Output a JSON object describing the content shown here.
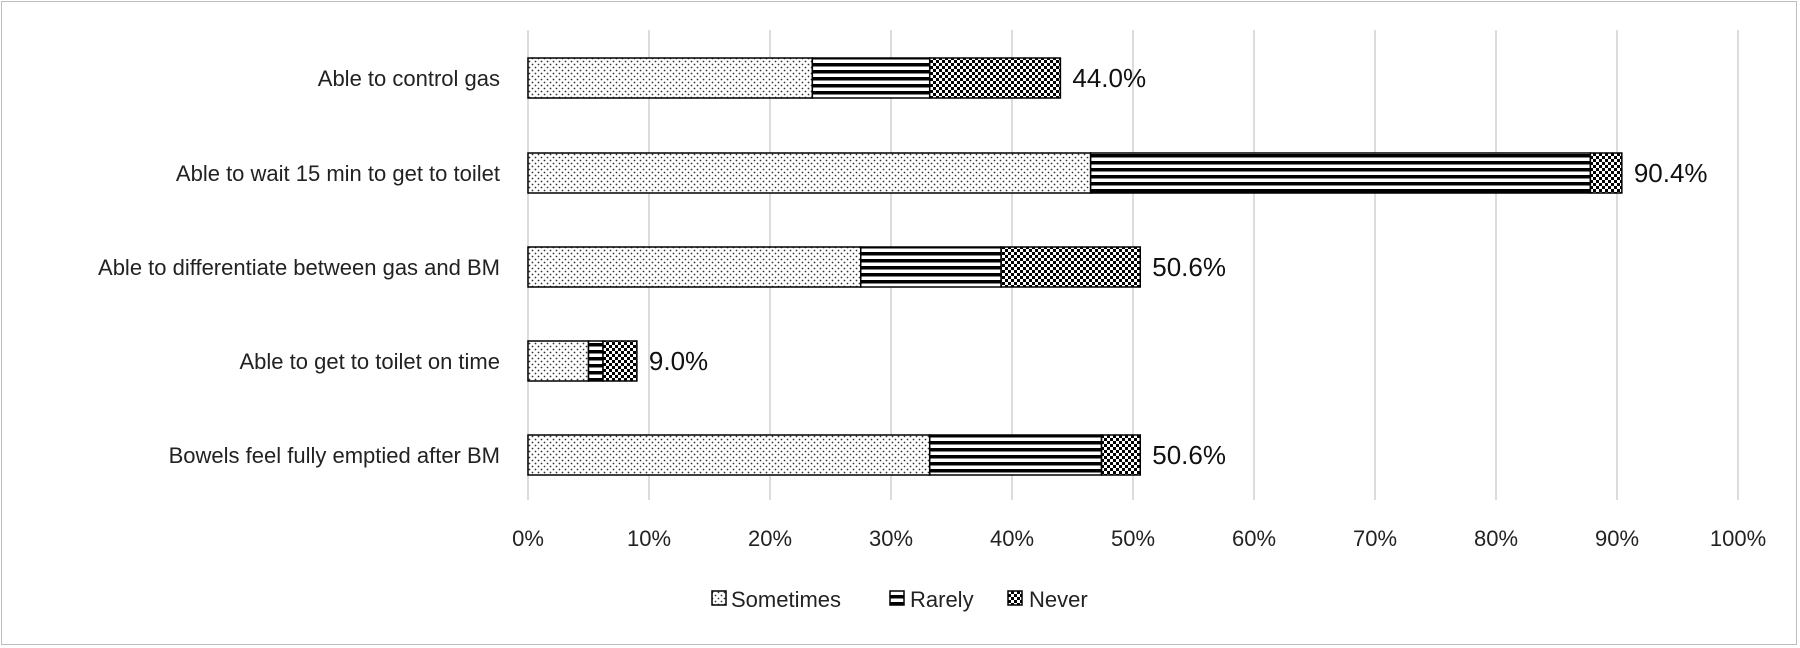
{
  "chart_data": {
    "type": "bar",
    "orientation": "horizontal",
    "stacked": true,
    "categories": [
      "Able to control gas",
      "Able to wait 15 min to get to toilet",
      "Able to differentiate between gas and BM",
      "Able to get to toilet on time",
      "Bowels feel fully emptied after BM"
    ],
    "series": [
      {
        "name": "Sometimes",
        "pattern": "dots",
        "values": [
          23.5,
          46.5,
          27.5,
          5.0,
          33.2
        ]
      },
      {
        "name": "Rarely",
        "pattern": "horizontal-lines",
        "values": [
          9.7,
          41.3,
          11.6,
          1.2,
          14.2
        ]
      },
      {
        "name": "Never",
        "pattern": "checker",
        "values": [
          10.8,
          2.6,
          11.5,
          2.8,
          3.2
        ]
      }
    ],
    "totals_labels": [
      "44.0%",
      "90.4%",
      "50.6%",
      "9.0%",
      "50.6%"
    ],
    "x_ticks": [
      "0%",
      "10%",
      "20%",
      "30%",
      "40%",
      "50%",
      "60%",
      "70%",
      "80%",
      "90%",
      "100%"
    ],
    "xlim": [
      0,
      100
    ],
    "grid": true,
    "legend_position": "bottom",
    "colors": {
      "bar_stroke": "#000000",
      "grid": "#d0d0d0",
      "frame": "#bdbdbd"
    }
  }
}
